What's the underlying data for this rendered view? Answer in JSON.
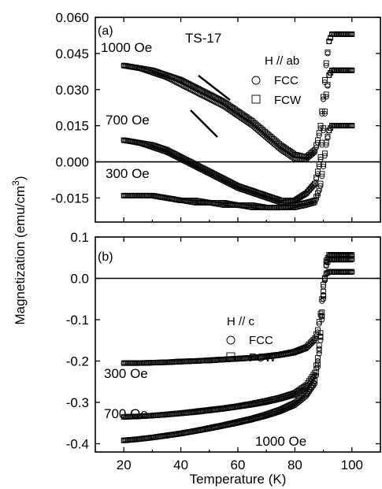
{
  "figure": {
    "ylabel": "Magnetization  (emu/cm",
    "ylabel_sup": "3",
    "ylabel_close": ")",
    "xlabel": "Temperature (K)"
  },
  "chart_data": [
    {
      "type": "scatter",
      "panel": "(a)",
      "sample": "TS-17",
      "field_direction": "H // ab",
      "legend": [
        "FCC",
        "FCW"
      ],
      "legend_markers": [
        "circle",
        "square"
      ],
      "xlim": [
        10,
        110
      ],
      "ylim": [
        -0.025,
        0.06
      ],
      "yticks": [
        "0.060",
        "0.045",
        "0.030",
        "0.015",
        "0.000",
        "-0.015"
      ],
      "yticks_values": [
        0.06,
        0.045,
        0.03,
        0.015,
        0.0,
        -0.015
      ],
      "xticks_values": [
        20,
        40,
        60,
        80,
        100
      ],
      "annotations": [
        "1000 Oe",
        "700 Oe",
        "300 Oe"
      ],
      "series": [
        {
          "name": "1000 Oe",
          "x": [
            20,
            25,
            30,
            35,
            40,
            45,
            50,
            55,
            60,
            65,
            70,
            75,
            80,
            84,
            87,
            88,
            89,
            90,
            91,
            92,
            93,
            95,
            100
          ],
          "fcc": [
            0.04,
            0.039,
            0.037,
            0.035,
            0.032,
            0.029,
            0.026,
            0.023,
            0.019,
            0.015,
            0.01,
            0.005,
            0.001,
            0.001,
            0.004,
            0.008,
            0.014,
            0.026,
            0.04,
            0.05,
            0.053,
            0.053,
            0.053
          ],
          "fcw": [
            0.04,
            0.039,
            0.038,
            0.036,
            0.034,
            0.031,
            0.028,
            0.025,
            0.021,
            0.017,
            0.012,
            0.007,
            0.003,
            0.002,
            0.005,
            0.009,
            0.015,
            0.027,
            0.041,
            0.05,
            0.053,
            0.053,
            0.053
          ]
        },
        {
          "name": "700 Oe",
          "x": [
            20,
            25,
            30,
            35,
            40,
            45,
            50,
            55,
            60,
            65,
            70,
            75,
            80,
            84,
            87,
            88,
            89,
            90,
            91,
            92,
            93,
            95,
            100
          ],
          "fcc": [
            0.009,
            0.008,
            0.006,
            0.004,
            0.001,
            -0.002,
            -0.005,
            -0.008,
            -0.011,
            -0.013,
            -0.015,
            -0.017,
            -0.016,
            -0.013,
            -0.009,
            -0.005,
            0.001,
            0.013,
            0.027,
            0.036,
            0.038,
            0.038,
            0.038
          ],
          "fcw": [
            0.009,
            0.008,
            0.007,
            0.005,
            0.002,
            -0.001,
            -0.004,
            -0.007,
            -0.01,
            -0.012,
            -0.014,
            -0.016,
            -0.016,
            -0.013,
            -0.009,
            -0.004,
            0.002,
            0.014,
            0.028,
            0.036,
            0.038,
            0.038,
            0.038
          ]
        },
        {
          "name": "300 Oe",
          "x": [
            20,
            25,
            30,
            35,
            40,
            45,
            50,
            55,
            60,
            65,
            70,
            75,
            80,
            84,
            87,
            88,
            89,
            90,
            91,
            92,
            93,
            95,
            100
          ],
          "fcc": [
            -0.014,
            -0.014,
            -0.014,
            -0.015,
            -0.016,
            -0.017,
            -0.017,
            -0.018,
            -0.018,
            -0.019,
            -0.019,
            -0.019,
            -0.019,
            -0.018,
            -0.017,
            -0.014,
            -0.01,
            -0.002,
            0.007,
            0.013,
            0.015,
            0.015,
            0.015
          ],
          "fcw": [
            -0.014,
            -0.014,
            -0.014,
            -0.015,
            -0.016,
            -0.016,
            -0.017,
            -0.017,
            -0.018,
            -0.018,
            -0.019,
            -0.019,
            -0.018,
            -0.017,
            -0.016,
            -0.013,
            -0.009,
            -0.001,
            0.008,
            0.013,
            0.015,
            0.015,
            0.015
          ]
        }
      ]
    },
    {
      "type": "scatter",
      "panel": "(b)",
      "field_direction": "H // c",
      "legend": [
        "FCC",
        "FCW"
      ],
      "legend_markers": [
        "circle",
        "square"
      ],
      "xlim": [
        10,
        110
      ],
      "ylim": [
        -0.42,
        0.1
      ],
      "yticks": [
        "0.1",
        "0.0",
        "-0.1",
        "-0.2",
        "-0.3",
        "-0.4"
      ],
      "yticks_values": [
        0.1,
        0.0,
        -0.1,
        -0.2,
        -0.3,
        -0.4
      ],
      "xticks": [
        "20",
        "40",
        "60",
        "80",
        "100"
      ],
      "xticks_values": [
        20,
        40,
        60,
        80,
        100
      ],
      "annotations": [
        "300 Oe",
        "700 Oe",
        "1000 Oe"
      ],
      "series": [
        {
          "name": "300 Oe",
          "x": [
            20,
            25,
            30,
            35,
            40,
            45,
            50,
            55,
            60,
            65,
            70,
            75,
            80,
            84,
            87,
            88,
            89,
            90,
            91,
            92,
            93,
            95,
            100
          ],
          "fcc": [
            -0.205,
            -0.205,
            -0.204,
            -0.203,
            -0.202,
            -0.2,
            -0.199,
            -0.197,
            -0.195,
            -0.193,
            -0.19,
            -0.186,
            -0.18,
            -0.17,
            -0.15,
            -0.13,
            -0.09,
            -0.02,
            0.01,
            0.015,
            0.015,
            0.015,
            0.015
          ],
          "fcw": [
            -0.205,
            -0.205,
            -0.204,
            -0.203,
            -0.201,
            -0.2,
            -0.198,
            -0.196,
            -0.194,
            -0.192,
            -0.188,
            -0.184,
            -0.177,
            -0.166,
            -0.145,
            -0.125,
            -0.085,
            -0.015,
            0.012,
            0.016,
            0.016,
            0.016,
            0.016
          ]
        },
        {
          "name": "700 Oe",
          "x": [
            20,
            25,
            30,
            35,
            40,
            45,
            50,
            55,
            60,
            65,
            70,
            75,
            80,
            84,
            87,
            88,
            89,
            90,
            91,
            92,
            93,
            95,
            100
          ],
          "fcc": [
            -0.335,
            -0.334,
            -0.332,
            -0.33,
            -0.327,
            -0.324,
            -0.32,
            -0.316,
            -0.311,
            -0.306,
            -0.3,
            -0.292,
            -0.282,
            -0.265,
            -0.235,
            -0.2,
            -0.14,
            -0.04,
            0.03,
            0.045,
            0.045,
            0.045,
            0.045
          ],
          "fcw": [
            -0.335,
            -0.334,
            -0.332,
            -0.329,
            -0.326,
            -0.322,
            -0.318,
            -0.314,
            -0.309,
            -0.303,
            -0.296,
            -0.288,
            -0.277,
            -0.258,
            -0.228,
            -0.192,
            -0.132,
            -0.032,
            0.033,
            0.047,
            0.047,
            0.047,
            0.047
          ]
        },
        {
          "name": "1000 Oe",
          "x": [
            20,
            25,
            30,
            35,
            40,
            45,
            50,
            55,
            60,
            65,
            70,
            75,
            80,
            84,
            87,
            88,
            89,
            90,
            91,
            92,
            93,
            95,
            100
          ],
          "fcc": [
            -0.392,
            -0.389,
            -0.385,
            -0.381,
            -0.376,
            -0.37,
            -0.364,
            -0.357,
            -0.35,
            -0.342,
            -0.333,
            -0.322,
            -0.307,
            -0.285,
            -0.255,
            -0.215,
            -0.15,
            -0.05,
            0.04,
            0.055,
            0.055,
            0.055,
            0.055
          ],
          "fcw": [
            -0.392,
            -0.389,
            -0.385,
            -0.38,
            -0.375,
            -0.369,
            -0.362,
            -0.355,
            -0.347,
            -0.339,
            -0.329,
            -0.317,
            -0.301,
            -0.278,
            -0.248,
            -0.207,
            -0.142,
            -0.042,
            0.043,
            0.057,
            0.057,
            0.057,
            0.057
          ]
        }
      ]
    }
  ]
}
